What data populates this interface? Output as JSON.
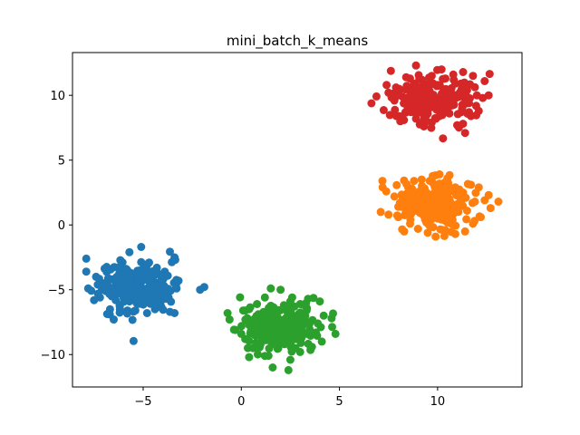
{
  "chart_data": {
    "type": "scatter",
    "title": "mini_batch_k_means",
    "xlabel": "",
    "ylabel": "",
    "xlim": [
      -8.6,
      14.3
    ],
    "ylim": [
      -12.5,
      13.3
    ],
    "grid": false,
    "legend": "none",
    "x_ticks": [
      -5,
      0,
      5,
      10
    ],
    "y_ticks": [
      -10,
      -5,
      0,
      5,
      10
    ],
    "x_tick_labels": [
      "−5",
      "0",
      "5",
      "10"
    ],
    "y_tick_labels": [
      "−10",
      "−5",
      "0",
      "5",
      "10"
    ],
    "series": [
      {
        "color": "#1f77b4",
        "center": [
          -5.2,
          -4.8
        ],
        "points": [
          [
            -7.9,
            -2.6
          ],
          [
            -7.9,
            -3.6
          ],
          [
            -7.4,
            -4.0
          ],
          [
            -7.0,
            -4.5
          ],
          [
            -6.6,
            -4.2
          ],
          [
            -6.2,
            -3.9
          ],
          [
            -5.8,
            -3.5
          ],
          [
            -5.7,
            -2.1
          ],
          [
            -5.1,
            -1.7
          ],
          [
            -4.7,
            -2.9
          ],
          [
            -4.3,
            -3.3
          ],
          [
            -3.9,
            -3.6
          ],
          [
            -3.4,
            -2.5
          ],
          [
            -3.3,
            -4.9
          ],
          [
            -3.4,
            -6.8
          ],
          [
            -4.4,
            -6.5
          ],
          [
            -4.8,
            -6.8
          ],
          [
            -5.4,
            -6.6
          ],
          [
            -5.8,
            -6.6
          ],
          [
            -6.2,
            -6.2
          ],
          [
            -6.5,
            -7.3
          ],
          [
            -6.7,
            -6.9
          ],
          [
            -7.5,
            -5.8
          ],
          [
            -7.2,
            -5.6
          ],
          [
            -7.8,
            -4.9
          ],
          [
            -6.9,
            -5.1
          ],
          [
            -6.3,
            -5.3
          ],
          [
            -5.9,
            -4.8
          ],
          [
            -5.5,
            -5.1
          ],
          [
            -5.2,
            -4.5
          ],
          [
            -4.8,
            -4.9
          ],
          [
            -4.5,
            -5.3
          ],
          [
            -4.2,
            -4.7
          ],
          [
            -3.8,
            -5.2
          ],
          [
            -4.0,
            -4.1
          ],
          [
            -4.9,
            -3.8
          ],
          [
            -5.4,
            -3.9
          ],
          [
            -6.0,
            -4.4
          ],
          [
            -6.4,
            -5.8
          ],
          [
            -5.7,
            -5.9
          ],
          [
            -5.0,
            -6.0
          ],
          [
            -4.3,
            -5.8
          ],
          [
            -3.7,
            -5.6
          ],
          [
            -2.1,
            -5.0
          ],
          [
            -5.3,
            -5.5
          ],
          [
            -6.8,
            -4.7
          ],
          [
            -7.1,
            -5.0
          ],
          [
            -5.6,
            -4.3
          ],
          [
            -4.6,
            -4.2
          ],
          [
            -4.1,
            -5.9
          ],
          [
            -6.0,
            -5.6
          ],
          [
            -5.1,
            -5.3
          ],
          [
            -4.4,
            -4.4
          ],
          [
            -5.9,
            -4.0
          ],
          [
            -6.6,
            -5.5
          ]
        ]
      },
      {
        "color": "#ff7f0e",
        "center": [
          9.9,
          1.6
        ],
        "points": [
          [
            7.2,
            2.9
          ],
          [
            7.1,
            1.0
          ],
          [
            7.5,
            0.8
          ],
          [
            8.0,
            1.4
          ],
          [
            8.3,
            2.0
          ],
          [
            8.5,
            2.9
          ],
          [
            8.8,
            3.4
          ],
          [
            9.2,
            3.0
          ],
          [
            9.6,
            3.4
          ],
          [
            10.1,
            3.9
          ],
          [
            10.5,
            3.6
          ],
          [
            10.9,
            2.9
          ],
          [
            11.3,
            2.5
          ],
          [
            11.7,
            3.1
          ],
          [
            12.1,
            2.9
          ],
          [
            12.6,
            2.3
          ],
          [
            13.1,
            1.8
          ],
          [
            12.7,
            1.3
          ],
          [
            12.2,
            0.6
          ],
          [
            11.8,
            0.1
          ],
          [
            11.4,
            -0.5
          ],
          [
            10.9,
            -0.7
          ],
          [
            10.4,
            -0.4
          ],
          [
            9.9,
            -0.9
          ],
          [
            9.5,
            -0.6
          ],
          [
            9.0,
            -0.3
          ],
          [
            8.6,
            0.1
          ],
          [
            8.3,
            -0.5
          ],
          [
            8.0,
            0.6
          ],
          [
            8.7,
            1.1
          ],
          [
            9.1,
            1.5
          ],
          [
            9.4,
            2.2
          ],
          [
            9.8,
            1.9
          ],
          [
            10.2,
            1.3
          ],
          [
            10.6,
            2.0
          ],
          [
            11.0,
            1.6
          ],
          [
            11.5,
            1.1
          ],
          [
            10.7,
            0.6
          ],
          [
            10.0,
            0.5
          ],
          [
            9.3,
            0.7
          ],
          [
            8.9,
            2.4
          ],
          [
            10.3,
            2.6
          ],
          [
            11.9,
            1.8
          ],
          [
            9.7,
            1.0
          ],
          [
            10.8,
            1.1
          ],
          [
            7.8,
            2.2
          ],
          [
            12.4,
            1.9
          ],
          [
            11.1,
            2.2
          ],
          [
            9.0,
            2.1
          ],
          [
            10.5,
            0.2
          ]
        ]
      },
      {
        "color": "#2ca02c",
        "center": [
          1.9,
          -7.8
        ],
        "points": [
          [
            -0.7,
            -6.8
          ],
          [
            -0.6,
            -7.3
          ],
          [
            -0.3,
            -8.1
          ],
          [
            0.0,
            -8.4
          ],
          [
            0.1,
            -6.6
          ],
          [
            0.4,
            -6.5
          ],
          [
            0.8,
            -6.1
          ],
          [
            1.2,
            -5.6
          ],
          [
            1.5,
            -4.9
          ],
          [
            2.0,
            -5.0
          ],
          [
            2.5,
            -5.9
          ],
          [
            3.0,
            -6.1
          ],
          [
            3.4,
            -5.7
          ],
          [
            4.0,
            -5.9
          ],
          [
            4.6,
            -7.2
          ],
          [
            4.8,
            -8.4
          ],
          [
            4.1,
            -9.0
          ],
          [
            3.6,
            -9.4
          ],
          [
            3.0,
            -9.8
          ],
          [
            2.5,
            -10.4
          ],
          [
            2.4,
            -11.2
          ],
          [
            1.6,
            -11.0
          ],
          [
            1.2,
            -10.1
          ],
          [
            0.8,
            -9.5
          ],
          [
            0.4,
            -10.2
          ],
          [
            0.2,
            -8.8
          ],
          [
            0.9,
            -8.5
          ],
          [
            1.3,
            -7.6
          ],
          [
            1.7,
            -8.0
          ],
          [
            2.1,
            -7.4
          ],
          [
            2.6,
            -7.9
          ],
          [
            3.1,
            -8.2
          ],
          [
            3.5,
            -7.5
          ],
          [
            2.9,
            -6.9
          ],
          [
            2.3,
            -6.6
          ],
          [
            1.8,
            -6.9
          ],
          [
            1.1,
            -7.1
          ],
          [
            0.6,
            -7.7
          ],
          [
            1.5,
            -9.0
          ],
          [
            2.2,
            -9.2
          ],
          [
            2.8,
            -8.8
          ],
          [
            3.8,
            -8.3
          ],
          [
            4.2,
            -7.0
          ],
          [
            1.0,
            -8.2
          ],
          [
            2.0,
            -8.5
          ],
          [
            3.2,
            -7.0
          ],
          [
            0.3,
            -7.2
          ],
          [
            1.4,
            -6.4
          ],
          [
            2.7,
            -6.3
          ],
          [
            3.9,
            -7.6
          ]
        ]
      },
      {
        "color": "#d62728",
        "center": [
          9.7,
          9.7
        ],
        "points": [
          [
            7.4,
            10.8
          ],
          [
            7.5,
            10.2
          ],
          [
            7.8,
            9.6
          ],
          [
            7.9,
            8.4
          ],
          [
            8.1,
            8.0
          ],
          [
            8.5,
            8.9
          ],
          [
            8.9,
            8.2
          ],
          [
            9.3,
            7.6
          ],
          [
            9.7,
            7.9
          ],
          [
            10.1,
            8.4
          ],
          [
            10.6,
            8.6
          ],
          [
            11.0,
            7.7
          ],
          [
            11.4,
            7.1
          ],
          [
            11.7,
            8.4
          ],
          [
            12.1,
            8.8
          ],
          [
            12.3,
            9.8
          ],
          [
            12.0,
            10.0
          ],
          [
            12.6,
            10.0
          ],
          [
            12.4,
            11.1
          ],
          [
            11.8,
            11.5
          ],
          [
            11.3,
            11.8
          ],
          [
            10.8,
            11.6
          ],
          [
            10.2,
            12.0
          ],
          [
            9.7,
            11.5
          ],
          [
            9.2,
            11.2
          ],
          [
            8.9,
            12.3
          ],
          [
            8.4,
            11.4
          ],
          [
            8.0,
            10.5
          ],
          [
            8.6,
            10.0
          ],
          [
            9.0,
            9.4
          ],
          [
            9.4,
            10.1
          ],
          [
            9.8,
            9.6
          ],
          [
            10.3,
            10.3
          ],
          [
            10.7,
            9.3
          ],
          [
            11.1,
            9.9
          ],
          [
            11.5,
            10.4
          ],
          [
            10.5,
            8.9
          ],
          [
            9.5,
            8.6
          ],
          [
            8.7,
            9.2
          ],
          [
            10.0,
            10.8
          ],
          [
            10.9,
            10.9
          ],
          [
            11.6,
            9.4
          ],
          [
            8.2,
            9.9
          ],
          [
            9.9,
            9.0
          ],
          [
            10.4,
            11.3
          ],
          [
            9.1,
            10.6
          ],
          [
            11.2,
            8.7
          ],
          [
            8.8,
            10.9
          ],
          [
            10.1,
            9.8
          ],
          [
            9.6,
            11.0
          ]
        ]
      }
    ]
  }
}
